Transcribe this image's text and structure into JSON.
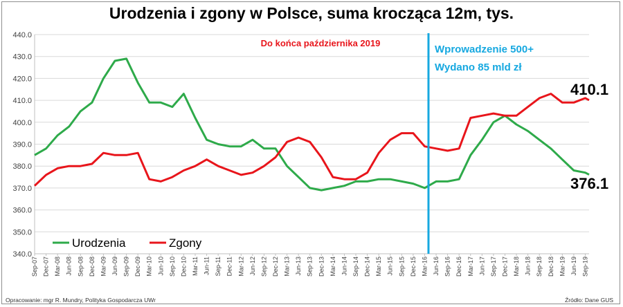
{
  "chart_data": {
    "type": "line",
    "title": "Urodzenia i zgony w Polsce, suma krocząca 12m, tys.",
    "subtitle": "Do końca października 2019",
    "xlabel": "",
    "ylabel": "",
    "ylim": [
      340,
      440
    ],
    "yticks": [
      "340.0",
      "350.0",
      "360.0",
      "370.0",
      "380.0",
      "390.0",
      "400.0",
      "410.0",
      "420.0",
      "430.0",
      "440.0"
    ],
    "xticks": [
      "Sep-07",
      "Dec-07",
      "Mar-08",
      "Jun-08",
      "Sep-08",
      "Dec-08",
      "Mar-09",
      "Jun-09",
      "Sep-09",
      "Dec-09",
      "Mar-10",
      "Jun-10",
      "Sep-10",
      "Dec-10",
      "Mar-11",
      "Jun-11",
      "Sep-11",
      "Dec-11",
      "Mar-12",
      "Jun-12",
      "Sep-12",
      "Dec-12",
      "Mar-13",
      "Jun-13",
      "Sep-13",
      "Dec-13",
      "Mar-14",
      "Jun-14",
      "Sep-14",
      "Dec-14",
      "Mar-15",
      "Jun-15",
      "Sep-15",
      "Dec-15",
      "Mar-16",
      "Jun-16",
      "Sep-16",
      "Dec-16",
      "Mar-17",
      "Jun-17",
      "Sep-17",
      "Dec-17",
      "Mar-18",
      "Jun-18",
      "Sep-18",
      "Dec-18",
      "Mar-19",
      "Jun-19",
      "Sep-19"
    ],
    "grid": true,
    "legend": "bottom-left",
    "series": [
      {
        "name": "Urodzenia",
        "color": "#2eaa4a",
        "points": [
          [
            "Sep-07",
            385
          ],
          [
            "Dec-07",
            388
          ],
          [
            "Mar-08",
            394
          ],
          [
            "Jun-08",
            398
          ],
          [
            "Sep-08",
            405
          ],
          [
            "Dec-08",
            409
          ],
          [
            "Mar-09",
            420
          ],
          [
            "Jun-09",
            428
          ],
          [
            "Sep-09",
            429
          ],
          [
            "Dec-09",
            418
          ],
          [
            "Mar-10",
            409
          ],
          [
            "Jun-10",
            409
          ],
          [
            "Sep-10",
            407
          ],
          [
            "Dec-10",
            413
          ],
          [
            "Mar-11",
            402
          ],
          [
            "Jun-11",
            392
          ],
          [
            "Sep-11",
            390
          ],
          [
            "Dec-11",
            389
          ],
          [
            "Mar-12",
            389
          ],
          [
            "Jun-12",
            392
          ],
          [
            "Sep-12",
            388
          ],
          [
            "Dec-12",
            388
          ],
          [
            "Mar-13",
            380
          ],
          [
            "Jun-13",
            375
          ],
          [
            "Sep-13",
            370
          ],
          [
            "Dec-13",
            369
          ],
          [
            "Mar-14",
            370
          ],
          [
            "Jun-14",
            371
          ],
          [
            "Sep-14",
            373
          ],
          [
            "Dec-14",
            373
          ],
          [
            "Mar-15",
            374
          ],
          [
            "Jun-15",
            374
          ],
          [
            "Sep-15",
            373
          ],
          [
            "Dec-15",
            372
          ],
          [
            "Mar-16",
            370
          ],
          [
            "Jun-16",
            373
          ],
          [
            "Sep-16",
            373
          ],
          [
            "Dec-16",
            374
          ],
          [
            "Mar-17",
            385
          ],
          [
            "Jun-17",
            392
          ],
          [
            "Sep-17",
            400
          ],
          [
            "Dec-17",
            403
          ],
          [
            "Mar-18",
            399
          ],
          [
            "Jun-18",
            396
          ],
          [
            "Sep-18",
            392
          ],
          [
            "Dec-18",
            388
          ],
          [
            "Mar-19",
            383
          ],
          [
            "Jun-19",
            378
          ],
          [
            "Sep-19",
            377
          ],
          [
            "Oct-19",
            376.1
          ]
        ]
      },
      {
        "name": "Zgony",
        "color": "#e8151b",
        "points": [
          [
            "Sep-07",
            371
          ],
          [
            "Dec-07",
            376
          ],
          [
            "Mar-08",
            379
          ],
          [
            "Jun-08",
            380
          ],
          [
            "Sep-08",
            380
          ],
          [
            "Dec-08",
            381
          ],
          [
            "Mar-09",
            386
          ],
          [
            "Jun-09",
            385
          ],
          [
            "Sep-09",
            385
          ],
          [
            "Dec-09",
            386
          ],
          [
            "Mar-10",
            374
          ],
          [
            "Jun-10",
            373
          ],
          [
            "Sep-10",
            375
          ],
          [
            "Dec-10",
            378
          ],
          [
            "Mar-11",
            380
          ],
          [
            "Jun-11",
            383
          ],
          [
            "Sep-11",
            380
          ],
          [
            "Dec-11",
            378
          ],
          [
            "Mar-12",
            376
          ],
          [
            "Jun-12",
            377
          ],
          [
            "Sep-12",
            380
          ],
          [
            "Dec-12",
            384
          ],
          [
            "Mar-13",
            391
          ],
          [
            "Jun-13",
            393
          ],
          [
            "Sep-13",
            391
          ],
          [
            "Dec-13",
            384
          ],
          [
            "Mar-14",
            375
          ],
          [
            "Jun-14",
            374
          ],
          [
            "Sep-14",
            374
          ],
          [
            "Dec-14",
            377
          ],
          [
            "Mar-15",
            386
          ],
          [
            "Jun-15",
            392
          ],
          [
            "Sep-15",
            395
          ],
          [
            "Dec-15",
            395
          ],
          [
            "Mar-16",
            389
          ],
          [
            "Jun-16",
            388
          ],
          [
            "Sep-16",
            387
          ],
          [
            "Dec-16",
            388
          ],
          [
            "Mar-17",
            402
          ],
          [
            "Jun-17",
            403
          ],
          [
            "Sep-17",
            404
          ],
          [
            "Dec-17",
            403
          ],
          [
            "Mar-18",
            403
          ],
          [
            "Jun-18",
            407
          ],
          [
            "Sep-18",
            411
          ],
          [
            "Dec-18",
            413
          ],
          [
            "Mar-19",
            409
          ],
          [
            "Jun-19",
            409
          ],
          [
            "Sep-19",
            411
          ],
          [
            "Oct-19",
            410.1
          ]
        ]
      }
    ],
    "marker": {
      "at": "Apr-16",
      "color": "#16a8e0",
      "labels": [
        "Wprowadzenie 500+",
        "Wydano 85 mld zł"
      ]
    },
    "end_labels": {
      "zgony": "410.1",
      "urodzenia": "376.1"
    }
  },
  "footer": {
    "left": "Opracowanie: mgr R. Mundry, Polityka Gospodarcza UWr",
    "right": "Źródło: Dane GUS"
  }
}
